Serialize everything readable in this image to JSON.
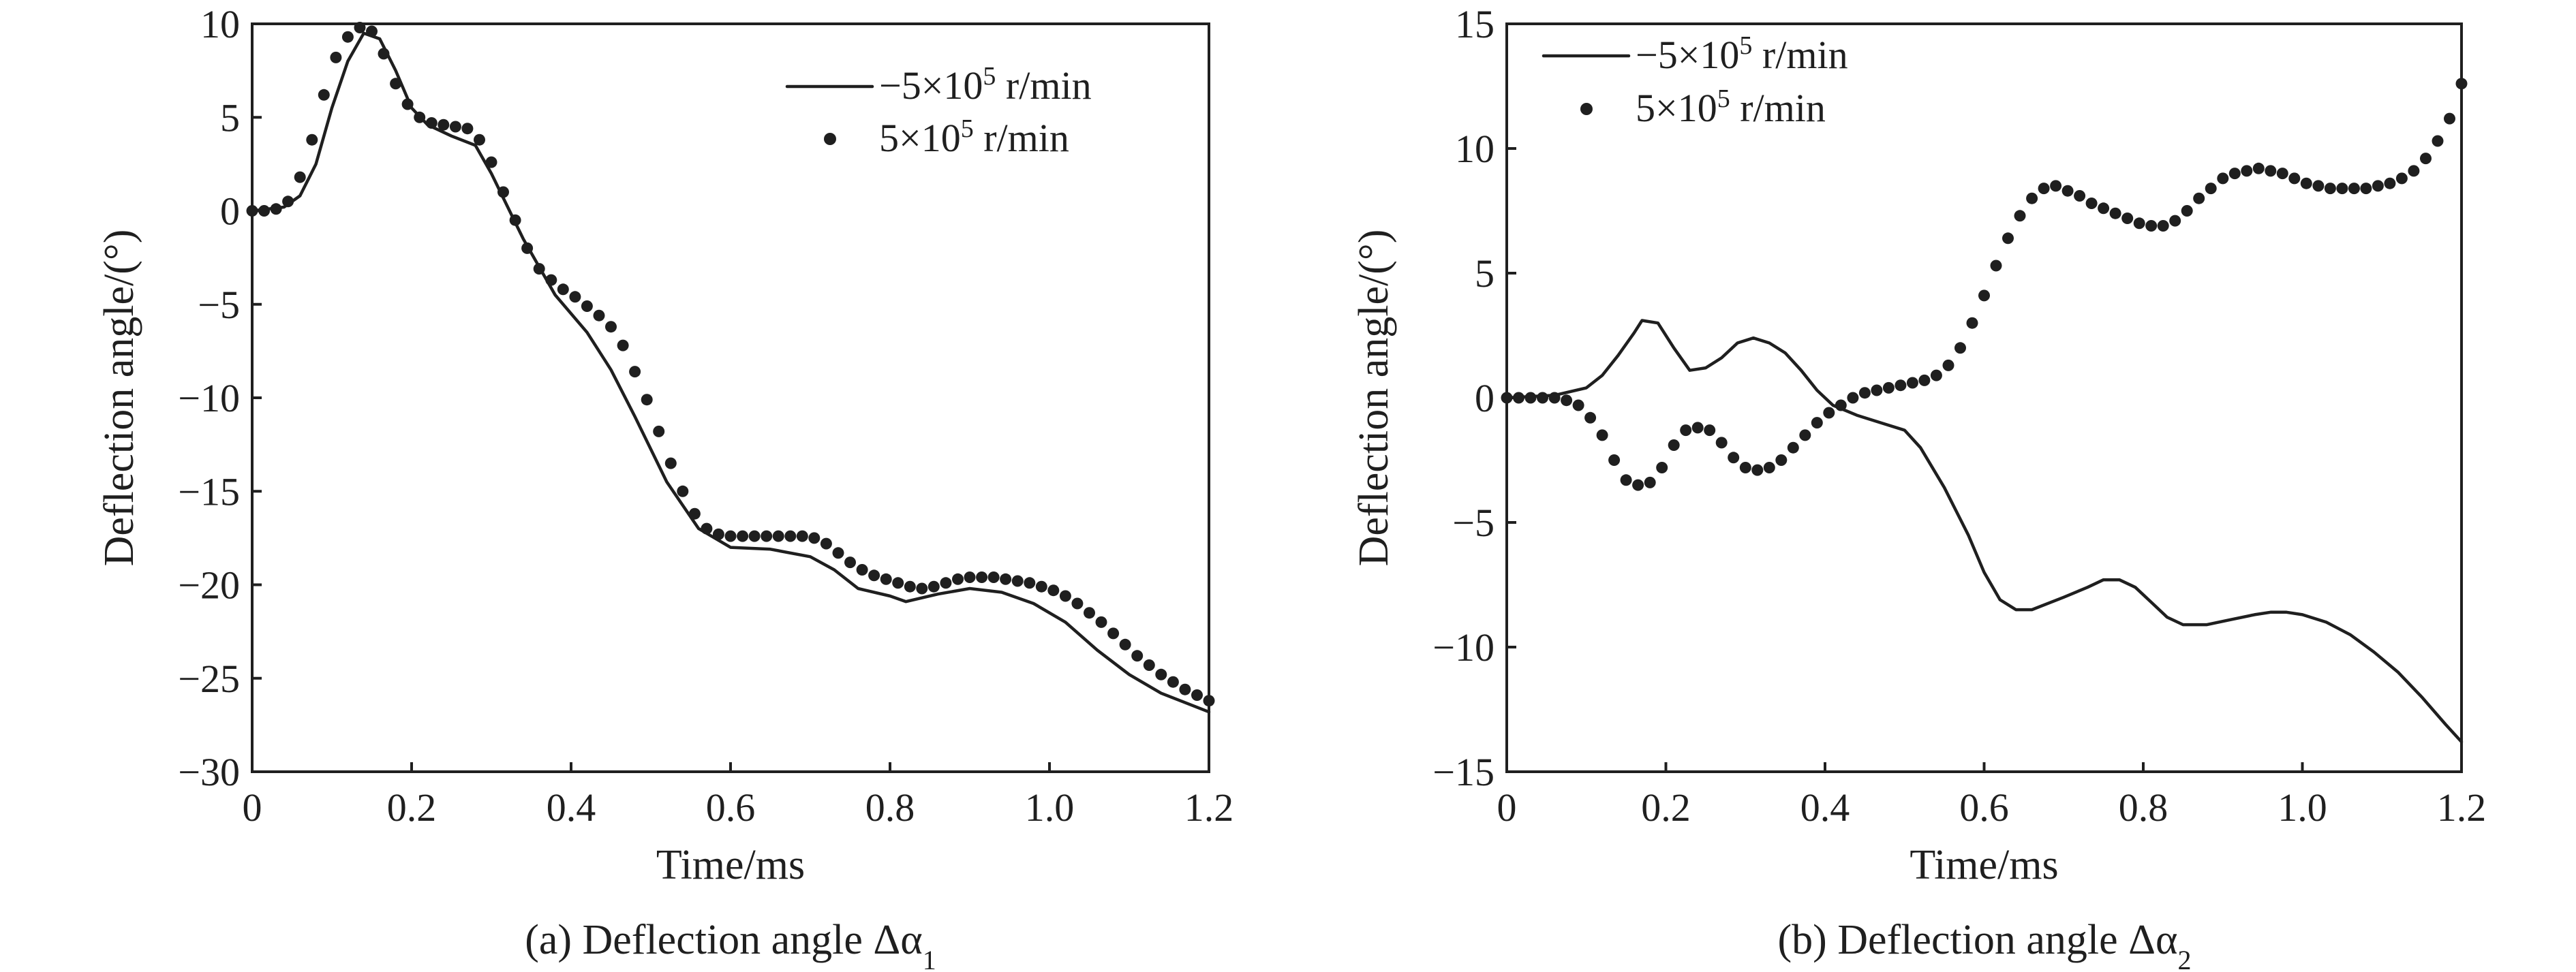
{
  "chart_data": [
    {
      "type": "line",
      "caption": "(a) Deflection angle Δα",
      "caption_sub": "1",
      "xlabel": "Time/ms",
      "ylabel": "Deflection angle/(°)",
      "xlim": [
        0,
        1.2
      ],
      "ylim": [
        -30,
        10
      ],
      "xticks": [
        0,
        0.2,
        0.4,
        0.6,
        0.8,
        1.0,
        1.2
      ],
      "xtick_labels": [
        "0",
        "0.2",
        "0.4",
        "0.6",
        "0.8",
        "1.0",
        "1.2"
      ],
      "yticks": [
        10,
        5,
        0,
        -5,
        -10,
        -15,
        -20,
        -25,
        -30
      ],
      "ytick_labels": [
        "10",
        "5",
        "0",
        "−5",
        "−10",
        "−15",
        "−20",
        "−25",
        "−30"
      ],
      "legend_position": "top-right",
      "series": [
        {
          "name": "−5×10",
          "name_sup": "5",
          "name_suffix": " r/min",
          "style": "line",
          "x": [
            0,
            0.04,
            0.06,
            0.08,
            0.1,
            0.12,
            0.14,
            0.16,
            0.18,
            0.2,
            0.22,
            0.25,
            0.28,
            0.3,
            0.34,
            0.38,
            0.42,
            0.45,
            0.48,
            0.52,
            0.56,
            0.6,
            0.65,
            0.7,
            0.73,
            0.76,
            0.8,
            0.82,
            0.86,
            0.9,
            0.94,
            0.98,
            1.02,
            1.06,
            1.1,
            1.14,
            1.2
          ],
          "y": [
            0,
            0.2,
            0.8,
            2.5,
            5.5,
            8,
            9.5,
            9.2,
            7.5,
            5.5,
            4.6,
            4,
            3.5,
            2,
            -1.5,
            -4.5,
            -6.5,
            -8.5,
            -11,
            -14.5,
            -17,
            -18,
            -18.1,
            -18.5,
            -19.2,
            -20.2,
            -20.6,
            -20.9,
            -20.5,
            -20.2,
            -20.4,
            -21,
            -22,
            -23.5,
            -24.8,
            -25.8,
            -26.8
          ]
        },
        {
          "name": "5×10",
          "name_sup": "5",
          "name_suffix": " r/min",
          "style": "markers",
          "x": [
            0,
            0.015,
            0.03,
            0.045,
            0.06,
            0.075,
            0.09,
            0.105,
            0.12,
            0.135,
            0.15,
            0.165,
            0.18,
            0.195,
            0.21,
            0.225,
            0.24,
            0.255,
            0.27,
            0.285,
            0.3,
            0.315,
            0.33,
            0.345,
            0.36,
            0.375,
            0.39,
            0.405,
            0.42,
            0.435,
            0.45,
            0.465,
            0.48,
            0.495,
            0.51,
            0.525,
            0.54,
            0.555,
            0.57,
            0.585,
            0.6,
            0.615,
            0.63,
            0.645,
            0.66,
            0.675,
            0.69,
            0.705,
            0.72,
            0.735,
            0.75,
            0.765,
            0.78,
            0.795,
            0.81,
            0.825,
            0.84,
            0.855,
            0.87,
            0.885,
            0.9,
            0.915,
            0.93,
            0.945,
            0.96,
            0.975,
            0.99,
            1.005,
            1.02,
            1.035,
            1.05,
            1.065,
            1.08,
            1.095,
            1.11,
            1.125,
            1.14,
            1.155,
            1.17,
            1.185,
            1.2
          ],
          "y": [
            0,
            0,
            0.1,
            0.5,
            1.8,
            3.8,
            6.2,
            8.2,
            9.3,
            9.8,
            9.6,
            8.4,
            6.8,
            5.7,
            5,
            4.7,
            4.6,
            4.5,
            4.4,
            3.8,
            2.6,
            1,
            -0.5,
            -2,
            -3.1,
            -3.7,
            -4.2,
            -4.6,
            -5.1,
            -5.6,
            -6.2,
            -7.2,
            -8.6,
            -10.1,
            -11.8,
            -13.5,
            -15,
            -16.2,
            -17,
            -17.3,
            -17.4,
            -17.4,
            -17.4,
            -17.4,
            -17.4,
            -17.4,
            -17.4,
            -17.5,
            -17.8,
            -18.3,
            -18.8,
            -19.2,
            -19.5,
            -19.7,
            -19.9,
            -20.1,
            -20.2,
            -20.1,
            -19.9,
            -19.7,
            -19.6,
            -19.6,
            -19.6,
            -19.7,
            -19.8,
            -19.9,
            -20.1,
            -20.3,
            -20.6,
            -21,
            -21.5,
            -22,
            -22.6,
            -23.2,
            -23.8,
            -24.3,
            -24.8,
            -25.2,
            -25.6,
            -25.9,
            -26.2
          ]
        }
      ]
    },
    {
      "type": "line",
      "caption": "(b) Deflection angle Δα",
      "caption_sub": "2",
      "xlabel": "Time/ms",
      "ylabel": "Deflection angle/(°)",
      "xlim": [
        0,
        1.2
      ],
      "ylim": [
        -15,
        15
      ],
      "xticks": [
        0,
        0.2,
        0.4,
        0.6,
        0.8,
        1.0,
        1.2
      ],
      "xtick_labels": [
        "0",
        "0.2",
        "0.4",
        "0.6",
        "0.8",
        "1.0",
        "1.2"
      ],
      "yticks": [
        15,
        10,
        5,
        0,
        -5,
        -10,
        -15
      ],
      "ytick_labels": [
        "15",
        "10",
        "5",
        "0",
        "−5",
        "−10",
        "−15"
      ],
      "legend_position": "top-left",
      "series": [
        {
          "name": "−5×10",
          "name_sup": "5",
          "name_suffix": " r/min",
          "style": "line",
          "x": [
            0,
            0.06,
            0.1,
            0.12,
            0.14,
            0.16,
            0.17,
            0.19,
            0.21,
            0.23,
            0.25,
            0.27,
            0.29,
            0.31,
            0.33,
            0.35,
            0.37,
            0.39,
            0.41,
            0.44,
            0.47,
            0.5,
            0.52,
            0.55,
            0.58,
            0.6,
            0.62,
            0.64,
            0.66,
            0.7,
            0.73,
            0.75,
            0.77,
            0.79,
            0.81,
            0.83,
            0.85,
            0.88,
            0.91,
            0.94,
            0.96,
            0.98,
            1.0,
            1.03,
            1.06,
            1.09,
            1.12,
            1.15,
            1.18,
            1.2
          ],
          "y": [
            0,
            0.1,
            0.4,
            0.9,
            1.7,
            2.6,
            3.1,
            3,
            2,
            1.1,
            1.2,
            1.6,
            2.2,
            2.4,
            2.2,
            1.8,
            1.1,
            0.3,
            -0.3,
            -0.7,
            -1,
            -1.3,
            -2,
            -3.6,
            -5.5,
            -7,
            -8.1,
            -8.5,
            -8.5,
            -8,
            -7.6,
            -7.3,
            -7.3,
            -7.6,
            -8.2,
            -8.8,
            -9.1,
            -9.1,
            -8.9,
            -8.7,
            -8.6,
            -8.6,
            -8.7,
            -9,
            -9.5,
            -10.2,
            -11,
            -12,
            -13.1,
            -13.8
          ]
        },
        {
          "name": "5×10",
          "name_sup": "5",
          "name_suffix": " r/min",
          "style": "markers",
          "x": [
            0,
            0.015,
            0.03,
            0.045,
            0.06,
            0.075,
            0.09,
            0.105,
            0.12,
            0.135,
            0.15,
            0.165,
            0.18,
            0.195,
            0.21,
            0.225,
            0.24,
            0.255,
            0.27,
            0.285,
            0.3,
            0.315,
            0.33,
            0.345,
            0.36,
            0.375,
            0.39,
            0.405,
            0.42,
            0.435,
            0.45,
            0.465,
            0.48,
            0.495,
            0.51,
            0.525,
            0.54,
            0.555,
            0.57,
            0.585,
            0.6,
            0.615,
            0.63,
            0.645,
            0.66,
            0.675,
            0.69,
            0.705,
            0.72,
            0.735,
            0.75,
            0.765,
            0.78,
            0.795,
            0.81,
            0.825,
            0.84,
            0.855,
            0.87,
            0.885,
            0.9,
            0.915,
            0.93,
            0.945,
            0.96,
            0.975,
            0.99,
            1.005,
            1.02,
            1.035,
            1.05,
            1.065,
            1.08,
            1.095,
            1.11,
            1.125,
            1.14,
            1.155,
            1.17,
            1.185,
            1.2
          ],
          "y": [
            0,
            0,
            0,
            0,
            0,
            -0.1,
            -0.3,
            -0.8,
            -1.5,
            -2.5,
            -3.3,
            -3.5,
            -3.4,
            -2.8,
            -1.9,
            -1.3,
            -1.2,
            -1.3,
            -1.8,
            -2.4,
            -2.8,
            -2.9,
            -2.8,
            -2.5,
            -2,
            -1.5,
            -1,
            -0.6,
            -0.3,
            0,
            0.2,
            0.3,
            0.4,
            0.5,
            0.6,
            0.7,
            0.9,
            1.3,
            2,
            3,
            4.1,
            5.3,
            6.4,
            7.3,
            8,
            8.4,
            8.5,
            8.3,
            8.1,
            7.8,
            7.6,
            7.4,
            7.2,
            7,
            6.9,
            6.9,
            7.1,
            7.5,
            8,
            8.4,
            8.8,
            9,
            9.1,
            9.2,
            9.1,
            9,
            8.8,
            8.6,
            8.5,
            8.4,
            8.4,
            8.4,
            8.4,
            8.5,
            8.6,
            8.8,
            9.1,
            9.6,
            10.3,
            11.2,
            12.6
          ]
        }
      ]
    }
  ]
}
